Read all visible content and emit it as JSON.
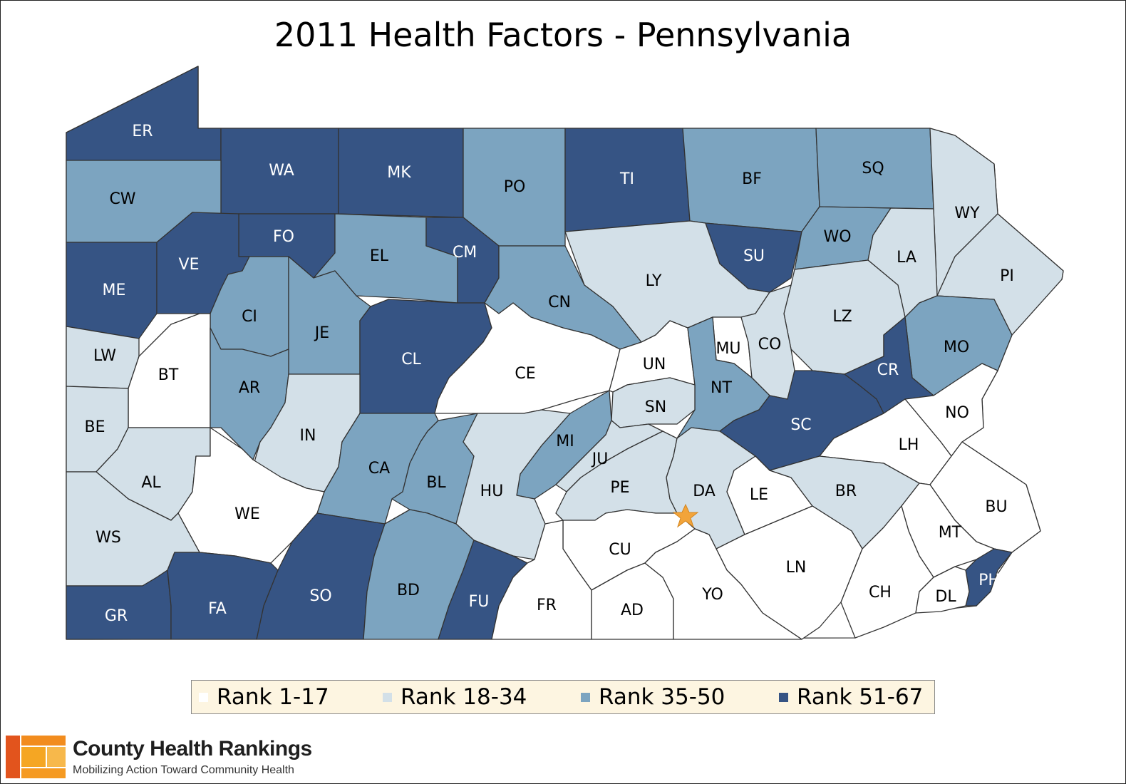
{
  "title": "2011 Health Factors - Pennsylvania",
  "colors": {
    "rank_1_17": "#ffffff",
    "rank_18_34": "#d3e0e8",
    "rank_35_50": "#7ca4c0",
    "rank_51_67": "#365484"
  },
  "legend": [
    {
      "label": "Rank 1-17",
      "color": "#ffffff"
    },
    {
      "label": "Rank 18-34",
      "color": "#d3e0e8"
    },
    {
      "label": "Rank 35-50",
      "color": "#7ca4c0"
    },
    {
      "label": "Rank 51-67",
      "color": "#365484"
    }
  ],
  "counties": [
    {
      "code": "ER",
      "rank_group": "51-67"
    },
    {
      "code": "WA",
      "rank_group": "51-67"
    },
    {
      "code": "MK",
      "rank_group": "51-67"
    },
    {
      "code": "PO",
      "rank_group": "35-50"
    },
    {
      "code": "TI",
      "rank_group": "51-67"
    },
    {
      "code": "BF",
      "rank_group": "35-50"
    },
    {
      "code": "SQ",
      "rank_group": "35-50"
    },
    {
      "code": "WY",
      "rank_group": "18-34"
    },
    {
      "code": "CW",
      "rank_group": "35-50"
    },
    {
      "code": "FO",
      "rank_group": "51-67"
    },
    {
      "code": "EL",
      "rank_group": "35-50"
    },
    {
      "code": "CM",
      "rank_group": "51-67"
    },
    {
      "code": "LY",
      "rank_group": "18-34"
    },
    {
      "code": "SU",
      "rank_group": "51-67"
    },
    {
      "code": "WO",
      "rank_group": "35-50"
    },
    {
      "code": "LA",
      "rank_group": "18-34"
    },
    {
      "code": "PI",
      "rank_group": "18-34"
    },
    {
      "code": "ME",
      "rank_group": "51-67"
    },
    {
      "code": "VE",
      "rank_group": "51-67"
    },
    {
      "code": "CI",
      "rank_group": "35-50"
    },
    {
      "code": "JE",
      "rank_group": "35-50"
    },
    {
      "code": "CN",
      "rank_group": "35-50"
    },
    {
      "code": "LZ",
      "rank_group": "18-34"
    },
    {
      "code": "LW",
      "rank_group": "18-34"
    },
    {
      "code": "BT",
      "rank_group": "1-17"
    },
    {
      "code": "CL",
      "rank_group": "51-67"
    },
    {
      "code": "CE",
      "rank_group": "1-17"
    },
    {
      "code": "UN",
      "rank_group": "1-17"
    },
    {
      "code": "MU",
      "rank_group": "1-17"
    },
    {
      "code": "CO",
      "rank_group": "18-34"
    },
    {
      "code": "MO",
      "rank_group": "35-50"
    },
    {
      "code": "AR",
      "rank_group": "35-50"
    },
    {
      "code": "NT",
      "rank_group": "35-50"
    },
    {
      "code": "CR",
      "rank_group": "51-67"
    },
    {
      "code": "BE",
      "rank_group": "18-34"
    },
    {
      "code": "IN",
      "rank_group": "18-34"
    },
    {
      "code": "SN",
      "rank_group": "18-34"
    },
    {
      "code": "SC",
      "rank_group": "51-67"
    },
    {
      "code": "NO",
      "rank_group": "1-17"
    },
    {
      "code": "AL",
      "rank_group": "18-34"
    },
    {
      "code": "CA",
      "rank_group": "35-50"
    },
    {
      "code": "MI",
      "rank_group": "35-50"
    },
    {
      "code": "JU",
      "rank_group": "18-34"
    },
    {
      "code": "LH",
      "rank_group": "1-17"
    },
    {
      "code": "BL",
      "rank_group": "35-50"
    },
    {
      "code": "HU",
      "rank_group": "18-34"
    },
    {
      "code": "PE",
      "rank_group": "18-34"
    },
    {
      "code": "DA",
      "rank_group": "18-34"
    },
    {
      "code": "LE",
      "rank_group": "1-17"
    },
    {
      "code": "BR",
      "rank_group": "18-34"
    },
    {
      "code": "BU",
      "rank_group": "1-17"
    },
    {
      "code": "WE",
      "rank_group": "1-17"
    },
    {
      "code": "WS",
      "rank_group": "18-34"
    },
    {
      "code": "MT",
      "rank_group": "1-17"
    },
    {
      "code": "CU",
      "rank_group": "1-17"
    },
    {
      "code": "LN",
      "rank_group": "1-17"
    },
    {
      "code": "SO",
      "rank_group": "51-67"
    },
    {
      "code": "BD",
      "rank_group": "35-50"
    },
    {
      "code": "FU",
      "rank_group": "51-67"
    },
    {
      "code": "FR",
      "rank_group": "1-17"
    },
    {
      "code": "AD",
      "rank_group": "1-17"
    },
    {
      "code": "YO",
      "rank_group": "1-17"
    },
    {
      "code": "CH",
      "rank_group": "1-17"
    },
    {
      "code": "PH",
      "rank_group": "51-67"
    },
    {
      "code": "DL",
      "rank_group": "1-17"
    },
    {
      "code": "GR",
      "rank_group": "51-67"
    },
    {
      "code": "FA",
      "rank_group": "51-67"
    }
  ],
  "capital_marker": "star-icon",
  "footer": {
    "brand": "County Health Rankings",
    "tagline": "Mobilizing Action Toward Community Health"
  }
}
